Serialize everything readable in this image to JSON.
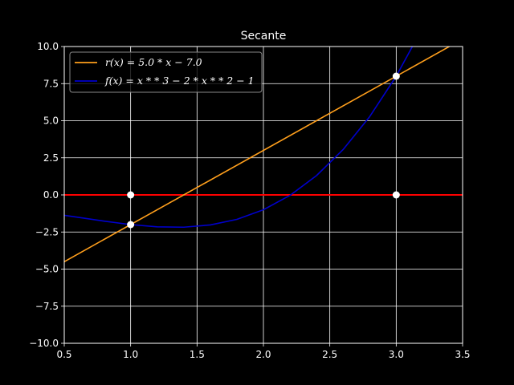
{
  "chart_data": {
    "type": "line",
    "title": "Secante",
    "xlabel": "",
    "ylabel": "",
    "xlim": [
      0.5,
      3.5
    ],
    "ylim": [
      -10.0,
      10.0
    ],
    "xticks": [
      0.5,
      1.0,
      1.5,
      2.0,
      2.5,
      3.0,
      3.5
    ],
    "xtick_labels": [
      "0.5",
      "1.0",
      "1.5",
      "2.0",
      "2.5",
      "3.0",
      "3.5"
    ],
    "yticks": [
      -10.0,
      -7.5,
      -5.0,
      -2.5,
      0.0,
      2.5,
      5.0,
      7.5,
      10.0
    ],
    "ytick_labels": [
      "−10.0",
      "−7.5",
      "−5.0",
      "−2.5",
      "0.0",
      "2.5",
      "5.0",
      "7.5",
      "10.0"
    ],
    "grid": true,
    "legend_position": "upper-left",
    "series": [
      {
        "name": "r(x) = 5.0 * x − 7.0",
        "color": "#ff9f1c",
        "x": [
          0.5,
          3.5
        ],
        "y": [
          -4.5,
          10.5
        ]
      },
      {
        "name": "f(x) = x * * 3 − 2 * x * * 2 − 1",
        "color": "#0000cc",
        "x": [
          0.5,
          0.6,
          0.8,
          1.0,
          1.2,
          1.4,
          1.6,
          1.8,
          2.0,
          2.2,
          2.4,
          2.6,
          2.8,
          3.0,
          3.2
        ],
        "y": [
          -1.375,
          -1.504,
          -1.768,
          -2.0,
          -2.152,
          -2.176,
          -2.024,
          -1.648,
          -1.0,
          -0.032,
          1.304,
          3.056,
          5.272,
          8.0,
          11.288
        ]
      }
    ],
    "reference_line": {
      "y": 0.0,
      "color": "#ff0000"
    },
    "points": [
      {
        "x": 1.0,
        "y": 0.0
      },
      {
        "x": 1.0,
        "y": -2.0
      },
      {
        "x": 3.0,
        "y": 0.0
      },
      {
        "x": 3.0,
        "y": 8.0
      }
    ]
  }
}
